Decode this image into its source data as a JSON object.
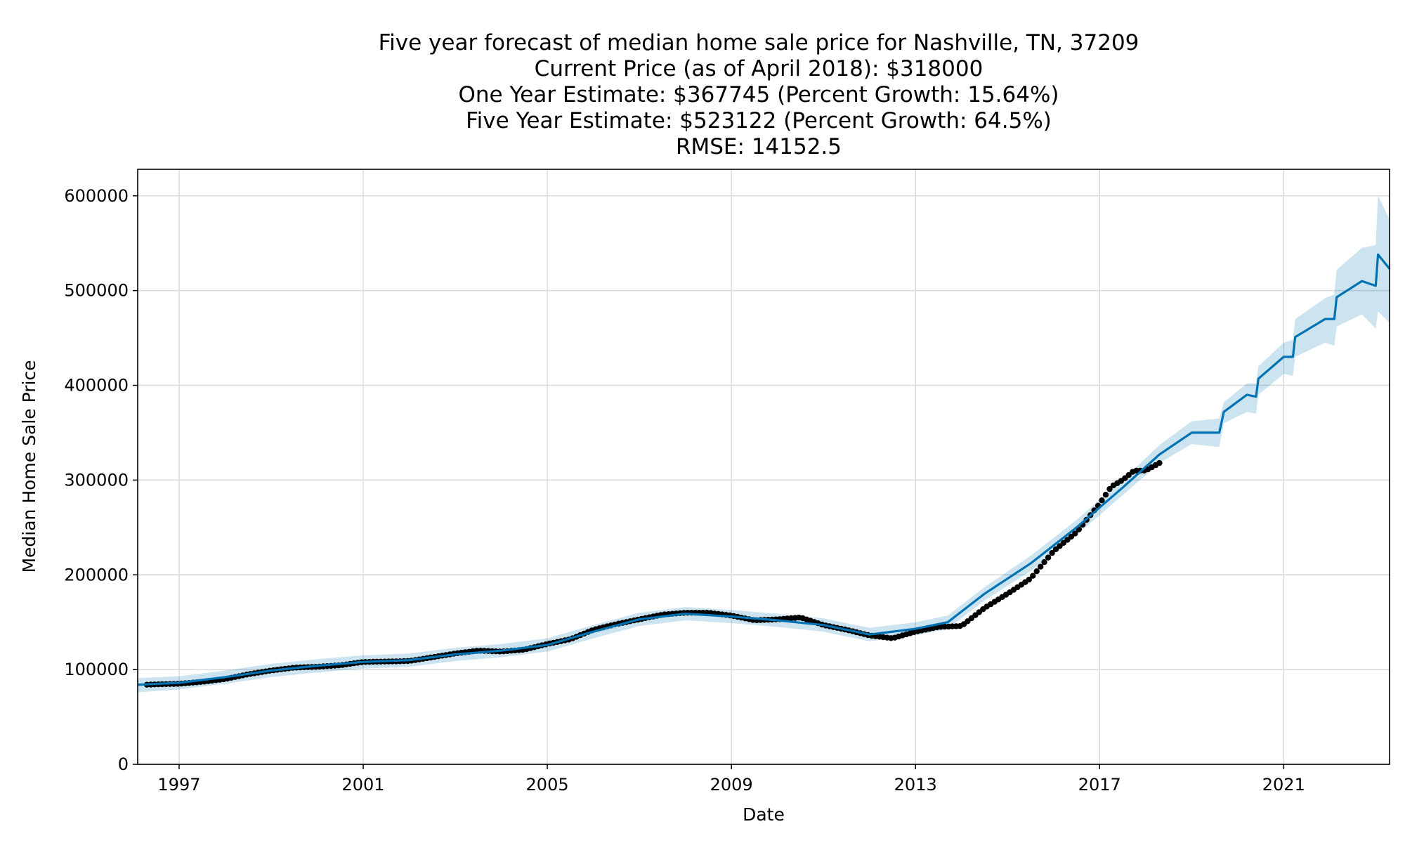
{
  "chart_data": {
    "type": "line",
    "title_lines": [
      "Five year forecast of median home sale price for Nashville, TN, 37209",
      "Current Price (as of April 2018): $318000",
      "One Year Estimate: $367745 (Percent Growth: 15.64%)",
      "Five Year Estimate: $523122 (Percent Growth: 64.5%)",
      "RMSE: 14152.5"
    ],
    "xlabel": "Date",
    "ylabel": "Median Home Sale Price",
    "xlim": [
      1996.1,
      2023.3
    ],
    "ylim": [
      0,
      628000
    ],
    "x_ticks": [
      1997,
      2001,
      2005,
      2009,
      2013,
      2017,
      2021
    ],
    "x_tick_labels": [
      "1997",
      "2001",
      "2005",
      "2009",
      "2013",
      "2017",
      "2021"
    ],
    "y_ticks": [
      0,
      100000,
      200000,
      300000,
      400000,
      500000,
      600000
    ],
    "y_tick_labels": [
      "0",
      "100000",
      "200000",
      "300000",
      "400000",
      "500000",
      "600000"
    ],
    "grid": true,
    "colors": {
      "forecast": "#0072B2",
      "band": "#0072B2",
      "observed": "#000000"
    },
    "observed": {
      "x": [
        1996.3,
        1996.6,
        1997.0,
        1997.5,
        1998.0,
        1998.5,
        1999.0,
        1999.5,
        2000.0,
        2000.5,
        2001.0,
        2001.5,
        2002.0,
        2002.5,
        2003.0,
        2003.5,
        2004.0,
        2004.5,
        2005.0,
        2005.5,
        2006.0,
        2006.5,
        2007.0,
        2007.5,
        2008.0,
        2008.5,
        2009.0,
        2009.5,
        2010.0,
        2010.5,
        2011.0,
        2011.5,
        2012.0,
        2012.5,
        2013.0,
        2013.5,
        2014.0,
        2014.5,
        2015.0,
        2015.5,
        2016.0,
        2016.5,
        2017.0,
        2017.25,
        2017.5,
        2017.75,
        2018.0,
        2018.3
      ],
      "y": [
        84000,
        84500,
        85000,
        87000,
        90000,
        95000,
        99000,
        102000,
        103000,
        104500,
        108000,
        108500,
        109000,
        113000,
        117000,
        120000,
        119000,
        121000,
        127000,
        132000,
        142000,
        148000,
        153000,
        158000,
        160000,
        160000,
        157000,
        152000,
        153000,
        155000,
        147000,
        142000,
        136000,
        133000,
        140000,
        145000,
        146000,
        165000,
        180000,
        196000,
        225000,
        245000,
        275000,
        293000,
        300000,
        310000,
        310000,
        318000
      ]
    },
    "forecast": {
      "x": [
        1996.1,
        1997.0,
        1998.0,
        1999.0,
        2000.0,
        2001.0,
        2002.0,
        2003.0,
        2004.0,
        2005.0,
        2006.0,
        2007.0,
        2008.0,
        2009.0,
        2010.0,
        2011.0,
        2012.0,
        2013.0,
        2013.7,
        2014.5,
        2015.5,
        2016.5,
        2017.5,
        2018.3,
        2019.0,
        2019.6,
        2019.7,
        2020.2,
        2020.4,
        2020.45,
        2021.0,
        2021.2,
        2021.25,
        2021.9,
        2022.1,
        2022.15,
        2022.7,
        2023.0,
        2023.05,
        2023.3
      ],
      "y": [
        84000,
        86000,
        92000,
        99000,
        104000,
        108000,
        110000,
        116000,
        120000,
        126000,
        140000,
        153000,
        159000,
        156000,
        152000,
        147000,
        137000,
        143000,
        150000,
        180000,
        212000,
        250000,
        292000,
        327000,
        350000,
        350000,
        372000,
        390000,
        388000,
        407000,
        430000,
        430000,
        451000,
        470000,
        470000,
        493000,
        510000,
        505000,
        538000,
        523000
      ]
    },
    "band": {
      "x": [
        1996.1,
        1997.0,
        1998.0,
        1999.0,
        2000.0,
        2001.0,
        2002.0,
        2003.0,
        2004.0,
        2005.0,
        2006.0,
        2007.0,
        2008.0,
        2009.0,
        2010.0,
        2011.0,
        2012.0,
        2013.0,
        2013.7,
        2014.5,
        2015.5,
        2016.5,
        2017.5,
        2018.3,
        2019.0,
        2019.6,
        2019.7,
        2020.2,
        2020.4,
        2020.45,
        2021.0,
        2021.2,
        2021.25,
        2021.9,
        2022.1,
        2022.15,
        2022.7,
        2023.0,
        2023.05,
        2023.3
      ],
      "upper": [
        91000,
        93000,
        99000,
        106000,
        111000,
        115000,
        117000,
        123000,
        127000,
        133000,
        147000,
        160000,
        166000,
        163000,
        159000,
        154000,
        144000,
        150000,
        157000,
        187000,
        220000,
        258000,
        300000,
        337000,
        362000,
        365000,
        382000,
        402000,
        402000,
        420000,
        445000,
        448000,
        470000,
        492000,
        496000,
        522000,
        545000,
        548000,
        600000,
        575000
      ],
      "lower": [
        76000,
        79000,
        85000,
        92000,
        97000,
        101000,
        103000,
        109000,
        113000,
        119000,
        133000,
        146000,
        152000,
        149000,
        145000,
        140000,
        130000,
        136000,
        143000,
        173000,
        204000,
        242000,
        284000,
        318000,
        338000,
        335000,
        360000,
        372000,
        370000,
        390000,
        412000,
        410000,
        430000,
        445000,
        442000,
        462000,
        475000,
        460000,
        478000,
        466000
      ]
    }
  }
}
